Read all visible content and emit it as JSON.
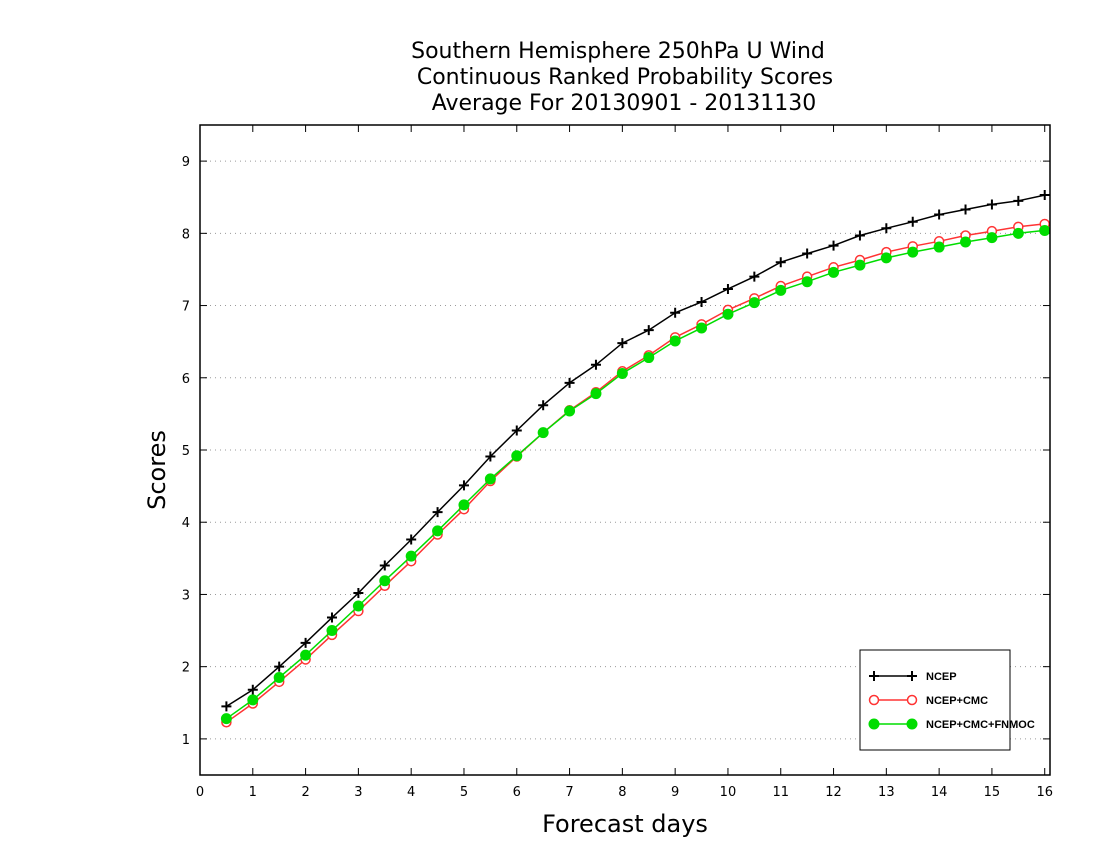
{
  "chart_data": {
    "type": "line",
    "title": [
      "Southern Hemisphere 250hPa U Wind",
      "Continuous Ranked Probability Scores",
      "Average For 20130901 - 20131130"
    ],
    "xlabel": "Forecast days",
    "ylabel": "Scores",
    "xlim": [
      0,
      16.1
    ],
    "ylim": [
      0.5,
      9.5
    ],
    "xticks": [
      "0",
      "1",
      "2",
      "3",
      "4",
      "5",
      "6",
      "7",
      "8",
      "9",
      "10",
      "11",
      "12",
      "13",
      "14",
      "15",
      "16"
    ],
    "yticks": [
      "1",
      "2",
      "3",
      "4",
      "5",
      "6",
      "7",
      "8",
      "9"
    ],
    "grid": "horizontal dotted",
    "legend_position": "bottom-right",
    "x": [
      0.5,
      1,
      1.5,
      2,
      2.5,
      3,
      3.5,
      4,
      4.5,
      5,
      5.5,
      6,
      6.5,
      7,
      7.5,
      8,
      8.5,
      9,
      9.5,
      10,
      10.5,
      11,
      11.5,
      12,
      12.5,
      13,
      13.5,
      14,
      14.5,
      15,
      15.5,
      16
    ],
    "series": [
      {
        "name": "NCEP",
        "color": "#000000",
        "marker": "plus",
        "values": [
          1.45,
          1.68,
          2.0,
          2.33,
          2.68,
          3.02,
          3.4,
          3.76,
          4.14,
          4.51,
          4.91,
          5.27,
          5.62,
          5.93,
          6.18,
          6.48,
          6.66,
          6.9,
          7.05,
          7.23,
          7.4,
          7.6,
          7.72,
          7.83,
          7.97,
          8.07,
          8.16,
          8.26,
          8.33,
          8.4,
          8.45,
          8.53
        ]
      },
      {
        "name": "NCEP+CMC",
        "color": "#ff3333",
        "marker": "open-circle",
        "values": [
          1.23,
          1.49,
          1.79,
          2.1,
          2.44,
          2.77,
          3.12,
          3.46,
          3.83,
          4.18,
          4.57,
          4.91,
          5.24,
          5.55,
          5.8,
          6.09,
          6.31,
          6.56,
          6.74,
          6.94,
          7.1,
          7.27,
          7.4,
          7.53,
          7.63,
          7.74,
          7.82,
          7.89,
          7.97,
          8.03,
          8.09,
          8.13
        ]
      },
      {
        "name": "NCEP+CMC+FNMOC",
        "color": "#00dd00",
        "marker": "filled-circle",
        "values": [
          1.28,
          1.54,
          1.85,
          2.16,
          2.5,
          2.84,
          3.19,
          3.53,
          3.88,
          4.24,
          4.6,
          4.92,
          5.24,
          5.54,
          5.78,
          6.06,
          6.28,
          6.51,
          6.69,
          6.88,
          7.04,
          7.21,
          7.33,
          7.46,
          7.56,
          7.66,
          7.74,
          7.81,
          7.88,
          7.94,
          8.0,
          8.04
        ]
      }
    ]
  }
}
